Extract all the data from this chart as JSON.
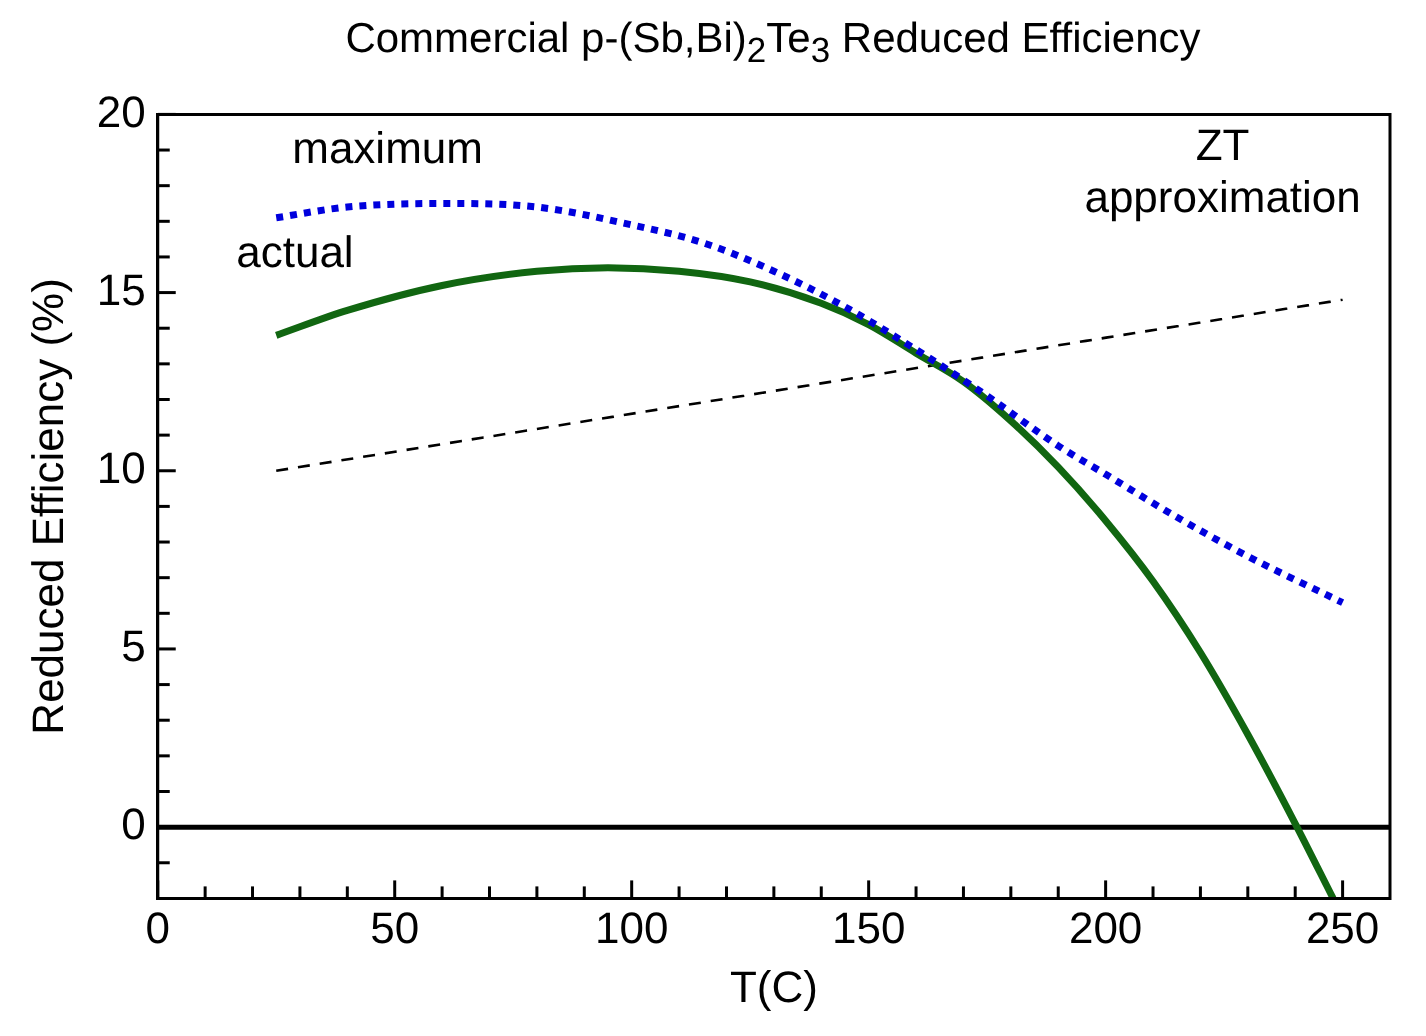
{
  "chart_data": {
    "type": "line",
    "title": "Commercial p-(Sb,Bi)$_{2}$Te$_{3}$ Reduced Efficiency",
    "xlabel": "T(C)",
    "ylabel": "Reduced Efficiency (%)",
    "xlim": [
      0,
      260
    ],
    "xticks": [
      0,
      {
        "value": 10,
        "label": null
      },
      {
        "value": 20,
        "label": null
      },
      {
        "value": 30,
        "label": null
      },
      {
        "value": 40,
        "label": null
      },
      50,
      {
        "value": 60,
        "label": null
      },
      {
        "value": 70,
        "label": null
      },
      {
        "value": 80,
        "label": null
      },
      {
        "value": 90,
        "label": null
      },
      100,
      {
        "value": 110,
        "label": null
      },
      {
        "value": 120,
        "label": null
      },
      {
        "value": 130,
        "label": null
      },
      {
        "value": 140,
        "label": null
      },
      150,
      {
        "value": 160,
        "label": null
      },
      {
        "value": 170,
        "label": null
      },
      {
        "value": 180,
        "label": null
      },
      {
        "value": 190,
        "label": null
      },
      200,
      {
        "value": 210,
        "label": null
      },
      {
        "value": 220,
        "label": null
      },
      {
        "value": 230,
        "label": null
      },
      {
        "value": 240,
        "label": null
      },
      250
    ],
    "ylim": [
      -2,
      20
    ],
    "yticks": [
      {
        "value": -1,
        "label": null
      },
      0,
      {
        "value": 1,
        "label": null
      },
      {
        "value": 2,
        "label": null
      },
      {
        "value": 3,
        "label": null
      },
      {
        "value": 4,
        "label": null
      },
      5,
      {
        "value": 6,
        "label": null
      },
      {
        "value": 7,
        "label": null
      },
      {
        "value": 8,
        "label": null
      },
      {
        "value": 9,
        "label": null
      },
      10,
      {
        "value": 11,
        "label": null
      },
      {
        "value": 12,
        "label": null
      },
      {
        "value": 13,
        "label": null
      },
      {
        "value": 14,
        "label": null
      },
      15,
      {
        "value": 16,
        "label": null
      },
      {
        "value": 17,
        "label": null
      },
      {
        "value": 18,
        "label": null
      },
      {
        "value": 19,
        "label": null
      },
      20
    ],
    "grid": false,
    "legend": false,
    "marker": "none",
    "ref_lines": [
      {
        "axis": "y",
        "value": 0,
        "color": "#000000",
        "line_style": "solid"
      }
    ],
    "series": [
      {
        "name": "maximum",
        "color": "#0000dd",
        "line_style": "dotted",
        "x": [
          25,
          40,
          60,
          80,
          100,
          115,
          130,
          145,
          160,
          175,
          190,
          200,
          215,
          230,
          250
        ],
        "values": [
          17.1,
          17.4,
          17.5,
          17.4,
          16.9,
          16.4,
          15.6,
          14.6,
          13.4,
          12.1,
          10.7,
          9.9,
          8.7,
          7.6,
          6.3
        ]
      },
      {
        "name": "actual",
        "color": "#116611",
        "line_style": "solid",
        "x": [
          25,
          40,
          60,
          80,
          95,
          110,
          125,
          140,
          150,
          160,
          170,
          180,
          190,
          200,
          210,
          220,
          230,
          240,
          248
        ],
        "values": [
          13.8,
          14.5,
          15.2,
          15.6,
          15.7,
          15.6,
          15.3,
          14.7,
          14.1,
          13.3,
          12.5,
          11.4,
          10.1,
          8.6,
          6.9,
          4.9,
          2.6,
          0.1,
          -2
        ]
      },
      {
        "name": "ZT approximation",
        "color": "#000000",
        "line_style": "dashed",
        "x": [
          25,
          250
        ],
        "values": [
          10.0,
          14.8
        ]
      }
    ]
  }
}
